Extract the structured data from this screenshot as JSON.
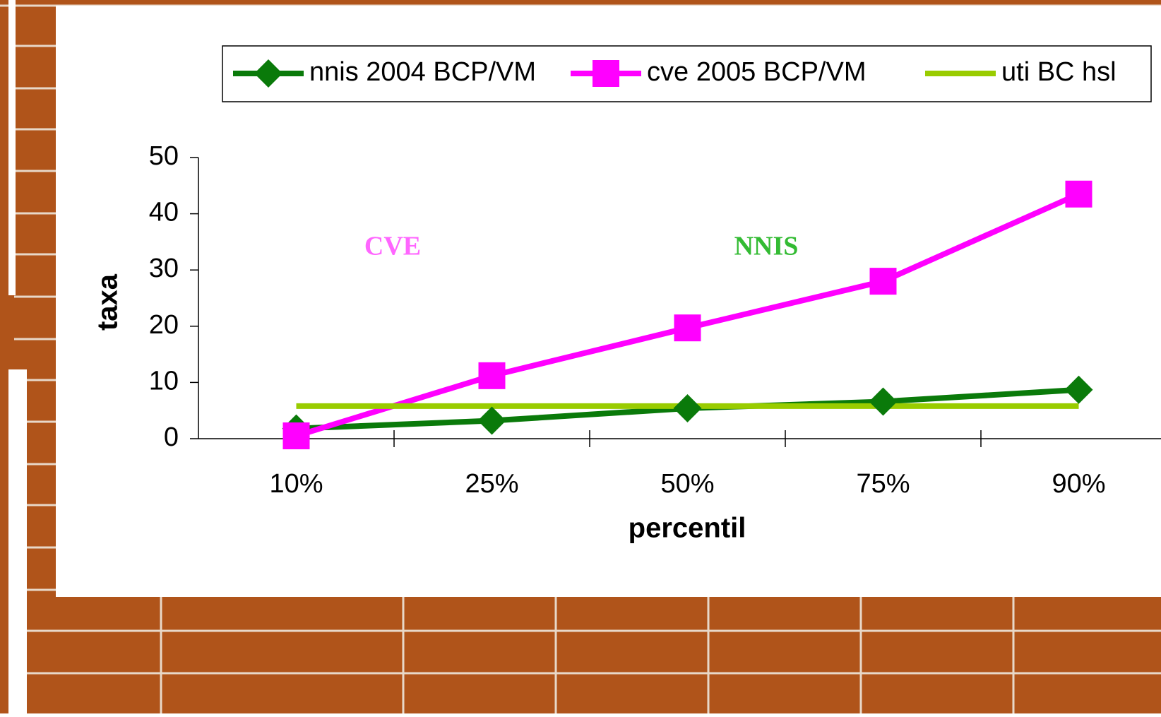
{
  "chart_data": {
    "type": "line",
    "x_label": "percentil",
    "y_label": "taxa",
    "categories": [
      "10%",
      "25%",
      "50%",
      "75%",
      "90%"
    ],
    "series": [
      {
        "name": "nnis 2004 BCP/VM",
        "color": "#0a7a0a",
        "marker": "diamond",
        "values": [
          1.8,
          3.2,
          5.4,
          6.6,
          8.7
        ]
      },
      {
        "name": "cve 2005 BCP/VM",
        "color": "#ff00ff",
        "marker": "square",
        "values": [
          0.5,
          11.2,
          19.7,
          28,
          43.5
        ]
      },
      {
        "name": "uti BC hsl",
        "color": "#99cc00",
        "marker": "none",
        "values": [
          5.8,
          5.8,
          5.8,
          5.8,
          5.8
        ]
      }
    ],
    "annotations": [
      {
        "text": "CVE",
        "color": "#ff66ff"
      },
      {
        "text": "NNIS",
        "color": "#33bb33"
      }
    ],
    "ylim": [
      0,
      50
    ],
    "yticks": [
      0,
      10,
      20,
      30,
      40,
      50
    ],
    "grid": false,
    "legend": "top"
  }
}
